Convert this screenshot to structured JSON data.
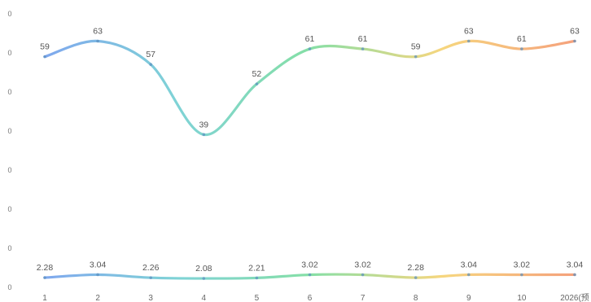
{
  "chart_data": {
    "type": "line",
    "categories": [
      "1",
      "2",
      "3",
      "4",
      "5",
      "6",
      "7",
      "8",
      "9",
      "10",
      "2026(预"
    ],
    "y_tick_labels": [
      "0",
      "0",
      "0",
      "0",
      "0",
      "0",
      "0",
      "0"
    ],
    "ylim": [
      0,
      70
    ],
    "grid": false,
    "legend": "none",
    "series": [
      {
        "values": [
          59,
          63,
          57,
          39,
          52,
          61,
          61,
          59,
          63,
          61,
          63
        ],
        "data_labels": [
          "59",
          "63",
          "57",
          "39",
          "52",
          "61",
          "61",
          "59",
          "63",
          "61",
          "63"
        ],
        "gradient_colors": [
          "#7fa8ee",
          "#7fd3d6",
          "#85dfa6",
          "#f6d67e",
          "#f5a17c"
        ]
      },
      {
        "values": [
          2.28,
          3.04,
          2.26,
          2.08,
          2.21,
          3.02,
          3.02,
          2.28,
          3.04,
          3.02,
          3.04
        ],
        "data_labels": [
          "2.28",
          "3.04",
          "2.26",
          "2.08",
          "2.21",
          "3.02",
          "3.02",
          "2.28",
          "3.04",
          "3.02",
          "3.04"
        ],
        "gradient_colors": [
          "#7fa8ee",
          "#7fd3d6",
          "#85dfa6",
          "#f6d67e",
          "#f5a17c"
        ]
      }
    ]
  }
}
